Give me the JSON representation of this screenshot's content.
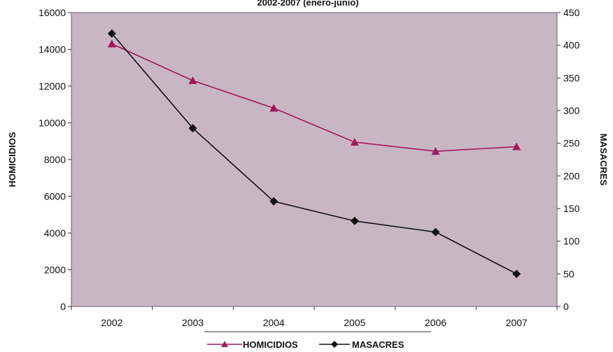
{
  "chart_data": {
    "type": "line",
    "title": "2002-2007 (enero-junio)",
    "categories": [
      "2002",
      "2003",
      "2004",
      "2005",
      "2006",
      "2007"
    ],
    "y_left": {
      "label": "HOMICIDIOS",
      "min": 0,
      "max": 16000,
      "ticks": [
        0,
        2000,
        4000,
        6000,
        8000,
        10000,
        12000,
        14000,
        16000
      ]
    },
    "y_right": {
      "label": "MASACRES",
      "min": 0,
      "max": 450,
      "ticks": [
        0,
        50,
        100,
        150,
        200,
        250,
        300,
        350,
        400,
        450
      ]
    },
    "series": [
      {
        "name": "HOMICIDIOS",
        "axis": "left",
        "color": "#a0185a",
        "marker": "triangle",
        "values": [
          14300,
          12300,
          10800,
          8950,
          8450,
          8700
        ]
      },
      {
        "name": "MASACRES",
        "axis": "right",
        "color": "#111111",
        "marker": "diamond",
        "values": [
          418,
          273,
          161,
          131,
          114,
          50
        ]
      }
    ],
    "grid": false,
    "legend_position": "bottom",
    "plot_background": "#c9b6c5"
  }
}
